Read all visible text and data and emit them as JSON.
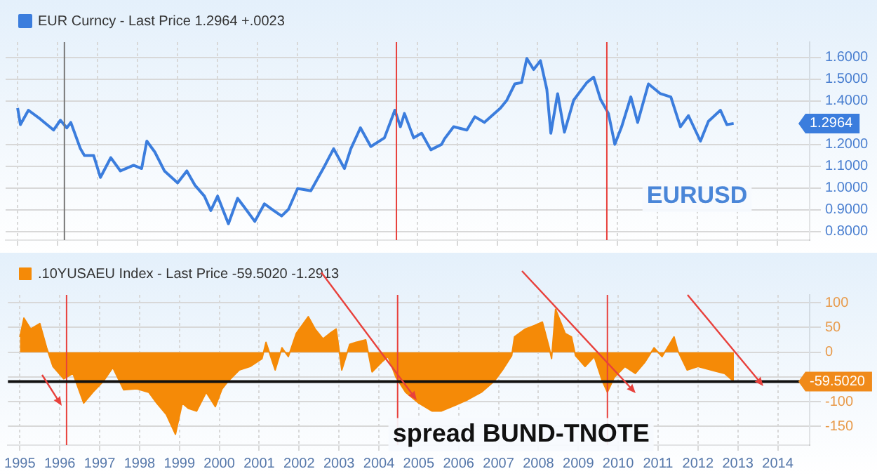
{
  "chart_data": [
    {
      "type": "line",
      "legend": "top left",
      "grid": true,
      "tick_labels": "y",
      "x": [
        1995.5,
        1995.57,
        1995.77,
        1996.07,
        1996.4,
        1996.57,
        1996.73,
        1996.83,
        1997.07,
        1997.17,
        1997.4,
        1997.57,
        1997.83,
        1998.07,
        1998.4,
        1998.6,
        1998.73,
        1998.93,
        1999.17,
        1999.5,
        1999.73,
        1999.93,
        2000.17,
        2000.33,
        2000.5,
        2000.77,
        2001.0,
        2001.17,
        2001.43,
        2001.67,
        2001.9,
        2002.1,
        2002.27,
        2002.5,
        2002.83,
        2003.17,
        2003.4,
        2003.67,
        2003.83,
        2004.07,
        2004.33,
        2004.67,
        2004.93,
        2005.07,
        2005.17,
        2005.4,
        2005.6,
        2005.83,
        2006.1,
        2006.17,
        2006.4,
        2006.73,
        2006.93,
        2007.17,
        2007.57,
        2007.73,
        2007.93,
        2008.1,
        2008.23,
        2008.4,
        2008.57,
        2008.73,
        2008.83,
        2009.0,
        2009.17,
        2009.4,
        2009.73,
        2009.9,
        2010.07,
        2010.27,
        2010.43,
        2010.6,
        2010.83,
        2011.0,
        2011.27,
        2011.57,
        2011.83,
        2012.07,
        2012.27,
        2012.57,
        2012.77,
        2013.07,
        2013.23,
        2013.4
      ],
      "series": [
        {
          "name": "EUR Curncy - Last Price 1.2964 +.0023",
          "color": "#3b7ddd",
          "values": [
            1.367,
            1.291,
            1.357,
            1.316,
            1.266,
            1.311,
            1.276,
            1.301,
            1.18,
            1.149,
            1.149,
            1.048,
            1.139,
            1.078,
            1.104,
            1.089,
            1.215,
            1.165,
            1.078,
            1.023,
            1.078,
            1.013,
            0.962,
            0.896,
            0.962,
            0.835,
            0.952,
            0.911,
            0.846,
            0.927,
            0.896,
            0.871,
            0.901,
            0.997,
            0.987,
            1.099,
            1.18,
            1.089,
            1.18,
            1.276,
            1.19,
            1.23,
            1.357,
            1.281,
            1.342,
            1.23,
            1.251,
            1.175,
            1.2,
            1.225,
            1.281,
            1.266,
            1.327,
            1.301,
            1.367,
            1.403,
            1.478,
            1.484,
            1.595,
            1.544,
            1.585,
            1.453,
            1.251,
            1.433,
            1.256,
            1.403,
            1.484,
            1.509,
            1.408,
            1.342,
            1.2,
            1.281,
            1.418,
            1.301,
            1.478,
            1.433,
            1.418,
            1.281,
            1.332,
            1.215,
            1.306,
            1.357,
            1.291,
            1.296
          ]
        }
      ],
      "xlim": [
        1995.2,
        2015.3
      ],
      "xticks": [
        {
          "value": 1995.5,
          "label": null
        },
        {
          "value": 1996.5,
          "label": null
        },
        {
          "value": 1997.5,
          "label": null
        },
        {
          "value": 1998.5,
          "label": null
        },
        {
          "value": 1999.5,
          "label": null
        },
        {
          "value": 2000.5,
          "label": null
        },
        {
          "value": 2001.5,
          "label": null
        },
        {
          "value": 2002.5,
          "label": null
        },
        {
          "value": 2003.5,
          "label": null
        },
        {
          "value": 2004.5,
          "label": null
        },
        {
          "value": 2005.5,
          "label": null
        },
        {
          "value": 2006.5,
          "label": null
        },
        {
          "value": 2007.5,
          "label": null
        },
        {
          "value": 2008.5,
          "label": null
        },
        {
          "value": 2009.5,
          "label": null
        },
        {
          "value": 2010.5,
          "label": null
        },
        {
          "value": 2011.5,
          "label": null
        },
        {
          "value": 2012.5,
          "label": null
        },
        {
          "value": 2013.5,
          "label": null
        },
        {
          "value": 2014.5,
          "label": null
        }
      ],
      "ylim": [
        0.76,
        1.67
      ],
      "yticks": [
        {
          "value": 0.8,
          "label": "0.8000"
        },
        {
          "value": 0.9,
          "label": "0.9000"
        },
        {
          "value": 1.0,
          "label": "1.0000"
        },
        {
          "value": 1.1,
          "label": "1.1000"
        },
        {
          "value": 1.2,
          "label": "1.2000"
        },
        {
          "value": 1.4,
          "label": "1.4000"
        },
        {
          "value": 1.5,
          "label": "1.5000"
        },
        {
          "value": 1.6,
          "label": "1.6000"
        }
      ],
      "ref_lines": [
        {
          "axis": "x",
          "value": 1996.67,
          "color": "#777777"
        },
        {
          "axis": "x",
          "value": 2004.97,
          "color": "#e8413c"
        },
        {
          "axis": "x",
          "value": 2010.23,
          "color": "#e8413c"
        }
      ],
      "annotations": [
        "EURUSD",
        "1.2964"
      ]
    },
    {
      "type": "area",
      "legend": "top left",
      "grid": true,
      "x": [
        1995.5,
        1995.6,
        1995.77,
        1996.0,
        1996.17,
        1996.33,
        1996.6,
        1996.83,
        1997.1,
        1997.33,
        1997.6,
        1997.83,
        1998.1,
        1998.43,
        1998.73,
        1998.93,
        1999.17,
        1999.4,
        1999.57,
        1999.73,
        1999.93,
        2000.17,
        2000.4,
        2000.57,
        2000.73,
        2001.0,
        2001.27,
        2001.57,
        2001.67,
        2001.9,
        2002.07,
        2002.23,
        2002.43,
        2002.73,
        2002.9,
        2003.1,
        2003.27,
        2003.43,
        2003.57,
        2003.77,
        2003.93,
        2004.17,
        2004.33,
        2004.57,
        2004.73,
        2004.93,
        2005.17,
        2005.5,
        2005.83,
        2006.07,
        2006.4,
        2006.73,
        2007.07,
        2007.4,
        2007.6,
        2007.83,
        2007.9,
        2008.17,
        2008.4,
        2008.6,
        2008.77,
        2008.83,
        2008.93,
        2009.17,
        2009.33,
        2009.43,
        2009.67,
        2009.9,
        2010.1,
        2010.23,
        2010.4,
        2010.67,
        2010.93,
        2011.17,
        2011.4,
        2011.6,
        2011.9,
        2012.0,
        2012.23,
        2012.5,
        2012.83,
        2013.17,
        2013.4
      ],
      "series": [
        {
          "name": ".10YUSAEU Index - Last Price -59.5020 -1.2913",
          "color": "#f58a07",
          "values": [
            31,
            69,
            47,
            58,
            9,
            -29,
            -54,
            -43,
            -103,
            -81,
            -58,
            -31,
            -76,
            -74,
            -81,
            -103,
            -126,
            -166,
            -103,
            -114,
            -119,
            -81,
            -110,
            -74,
            -58,
            -36,
            -29,
            -13,
            20,
            -36,
            9,
            -9,
            38,
            72,
            47,
            27,
            38,
            47,
            -36,
            16,
            20,
            25,
            -40,
            -20,
            -9,
            -51,
            -81,
            -103,
            -119,
            -119,
            -108,
            -96,
            -81,
            -58,
            -36,
            -7,
            31,
            47,
            54,
            61,
            9,
            -13,
            87,
            38,
            31,
            -7,
            -29,
            -9,
            -58,
            -81,
            -51,
            -29,
            -43,
            -20,
            9,
            -9,
            31,
            2,
            -36,
            -29,
            -36,
            -43,
            -59.5
          ]
        }
      ],
      "xlim": [
        1995.2,
        2015.3
      ],
      "xticks": [
        {
          "value": 1995.5,
          "label": "1995"
        },
        {
          "value": 1996.5,
          "label": "1996"
        },
        {
          "value": 1997.5,
          "label": "1997"
        },
        {
          "value": 1998.5,
          "label": "1998"
        },
        {
          "value": 1999.5,
          "label": "1999"
        },
        {
          "value": 2000.5,
          "label": "2000"
        },
        {
          "value": 2001.5,
          "label": "2001"
        },
        {
          "value": 2002.5,
          "label": "2002"
        },
        {
          "value": 2003.5,
          "label": "2003"
        },
        {
          "value": 2004.5,
          "label": "2004"
        },
        {
          "value": 2005.5,
          "label": "2005"
        },
        {
          "value": 2006.5,
          "label": "2006"
        },
        {
          "value": 2007.5,
          "label": "2007"
        },
        {
          "value": 2008.5,
          "label": "2008"
        },
        {
          "value": 2009.5,
          "label": "2009"
        },
        {
          "value": 2010.5,
          "label": "2010"
        },
        {
          "value": 2011.5,
          "label": "2011"
        },
        {
          "value": 2012.5,
          "label": "2012"
        },
        {
          "value": 2013.5,
          "label": "2013"
        },
        {
          "value": 2014.5,
          "label": "2014"
        }
      ],
      "ylim": [
        -188,
        116
      ],
      "yticks": [
        100,
        50,
        0,
        {
          "value": -50,
          "label": null
        },
        -100,
        -150
      ],
      "ref_lines": [
        {
          "axis": "x",
          "value": 1996.67,
          "color": "#e8413c"
        },
        {
          "axis": "x",
          "value": 2004.97,
          "color": "#e8413c"
        },
        {
          "axis": "x",
          "value": 2010.23,
          "color": "#e8413c"
        },
        {
          "axis": "y",
          "value": -59.502,
          "label": "-59.5020",
          "color": "#111111"
        }
      ],
      "annotations": [
        "spread BUND-TNOTE"
      ]
    }
  ]
}
